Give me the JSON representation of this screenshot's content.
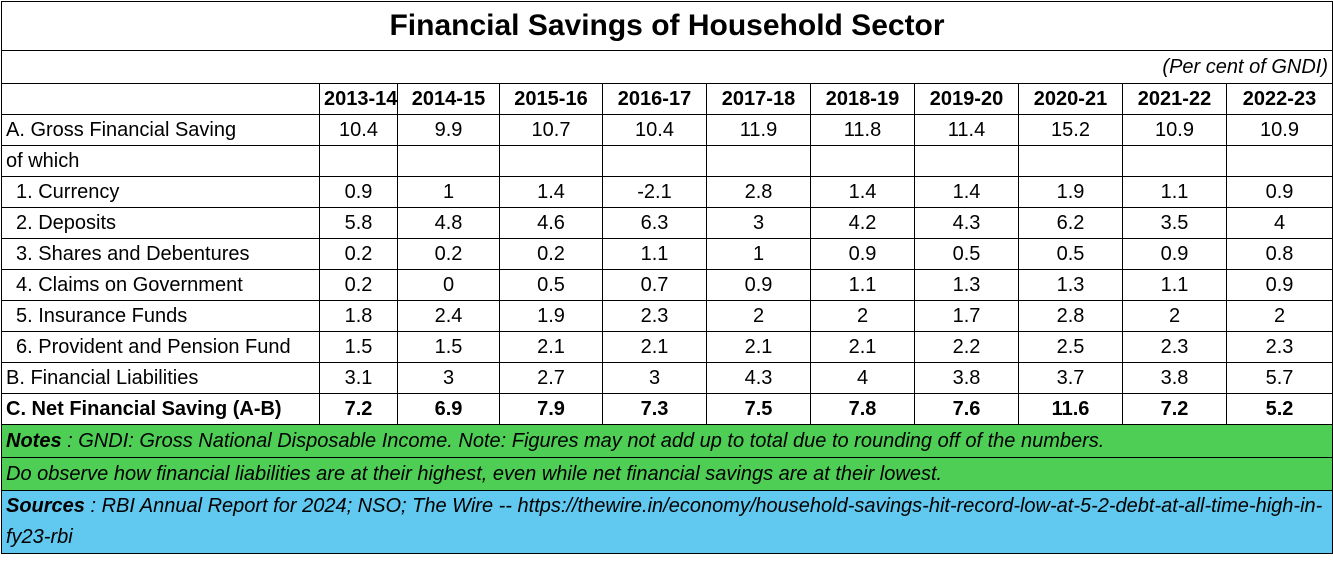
{
  "title": "Financial Savings of Household Sector",
  "unit_note": "(Per cent of GNDI)",
  "years": [
    "2013-14",
    "2014-15",
    "2015-16",
    "2016-17",
    "2017-18",
    "2018-19",
    "2019-20",
    "2020-21",
    "2021-22",
    "2022-23"
  ],
  "rows": [
    {
      "label": "A. Gross Financial Saving",
      "values": [
        "10.4",
        "9.9",
        "10.7",
        "10.4",
        "11.9",
        "11.8",
        "11.4",
        "15.2",
        "10.9",
        "10.9"
      ]
    },
    {
      "label": "of which",
      "values": [
        "",
        "",
        "",
        "",
        "",
        "",
        "",
        "",
        "",
        ""
      ]
    },
    {
      "label": "1. Currency",
      "values": [
        "0.9",
        "1",
        "1.4",
        "-2.1",
        "2.8",
        "1.4",
        "1.4",
        "1.9",
        "1.1",
        "0.9"
      ]
    },
    {
      "label": "2. Deposits",
      "values": [
        "5.8",
        "4.8",
        "4.6",
        "6.3",
        "3",
        "4.2",
        "4.3",
        "6.2",
        "3.5",
        "4"
      ]
    },
    {
      "label": "3. Shares and Debentures",
      "values": [
        "0.2",
        "0.2",
        "0.2",
        "1.1",
        "1",
        "0.9",
        "0.5",
        "0.5",
        "0.9",
        "0.8"
      ]
    },
    {
      "label": "4. Claims on Government",
      "values": [
        "0.2",
        "0",
        "0.5",
        "0.7",
        "0.9",
        "1.1",
        "1.3",
        "1.3",
        "1.1",
        "0.9"
      ]
    },
    {
      "label": "5. Insurance Funds",
      "values": [
        "1.8",
        "2.4",
        "1.9",
        "2.3",
        "2",
        "2",
        "1.7",
        "2.8",
        "2",
        "2"
      ]
    },
    {
      "label": "6. Provident and Pension Fund",
      "values": [
        "1.5",
        "1.5",
        "2.1",
        "2.1",
        "2.1",
        "2.1",
        "2.2",
        "2.5",
        "2.3",
        "2.3"
      ]
    },
    {
      "label": "B. Financial Liabilities",
      "values": [
        "3.1",
        "3",
        "2.7",
        "3",
        "4.3",
        "4",
        "3.8",
        "3.7",
        "3.8",
        "5.7"
      ]
    },
    {
      "label": "C. Net Financial Saving (A-B)",
      "values": [
        "7.2",
        "6.9",
        "7.9",
        "7.3",
        "7.5",
        "7.8",
        "7.6",
        "11.6",
        "7.2",
        "5.2"
      ]
    }
  ],
  "notes_label": "Notes",
  "notes_text": " : GNDI: Gross National Disposable Income. Note: Figures may not add up to total due to rounding off of the numbers.",
  "observation": "Do observe how financial liabilities are at their highest, even while net financial savings are at their lowest.",
  "sources_label": "Sources",
  "sources_text": " : RBI Annual Report for 2024; NSO; The Wire -- https://thewire.in/economy/household-savings-hit-record-low-at-5-2-debt-at-all-time-high-in-fy23-rbi",
  "colors": {
    "notes_bg": "#4fce55",
    "sources_bg": "#61c8ef"
  }
}
